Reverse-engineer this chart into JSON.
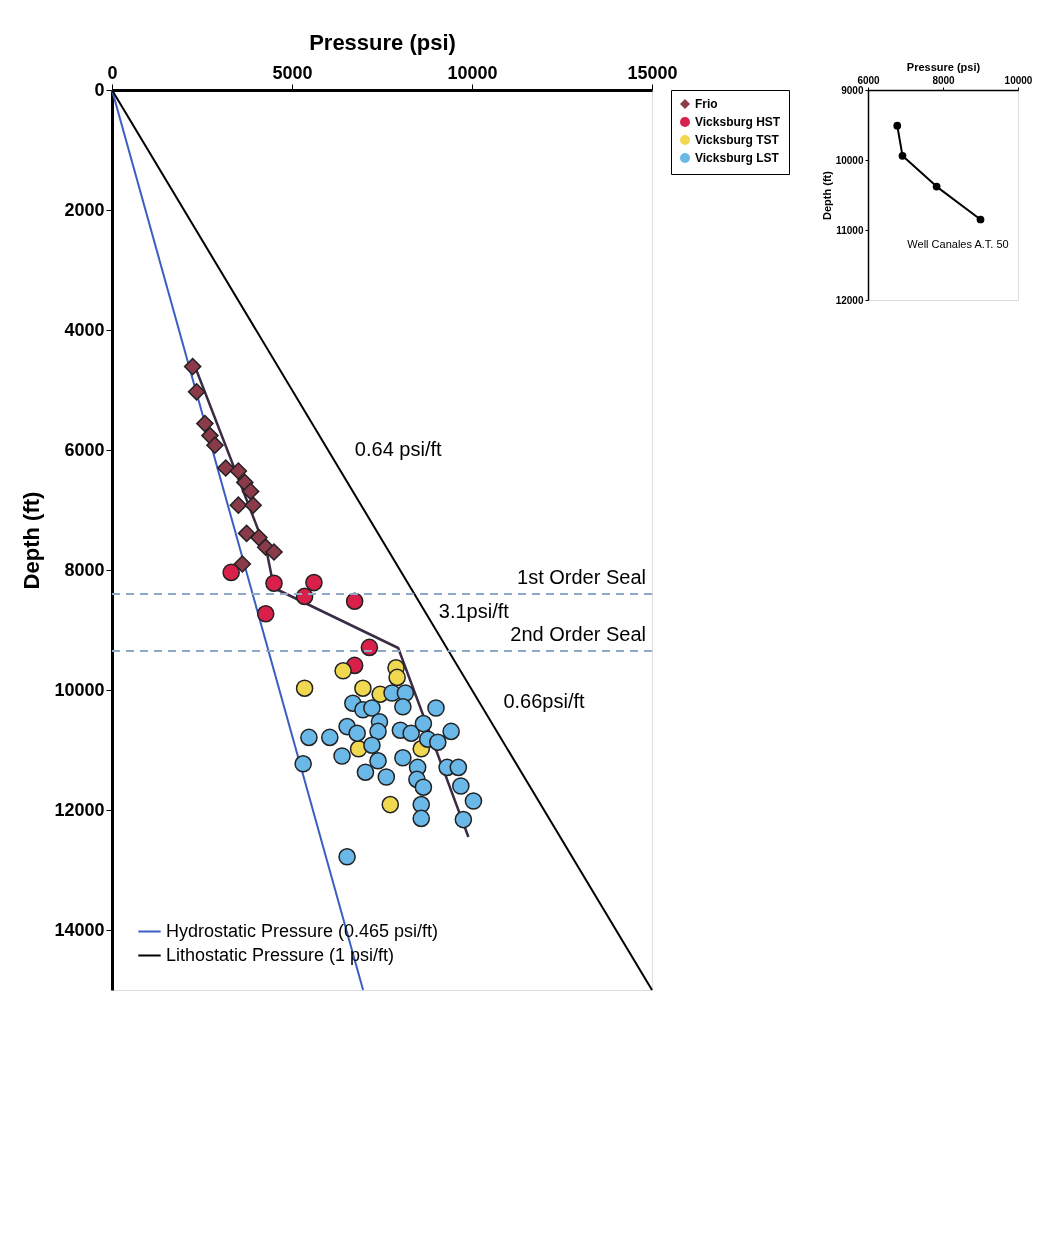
{
  "chart_data": [
    {
      "type": "scatter",
      "xlabel": "Pressure (psi)",
      "ylabel": "Depth (ft)",
      "xlim": [
        0,
        15000
      ],
      "xticks": [
        0,
        5000,
        10000,
        15000
      ],
      "ylim": [
        15000,
        0
      ],
      "yticks": [
        0,
        2000,
        4000,
        6000,
        8000,
        10000,
        12000,
        14000
      ],
      "grid": false,
      "legend": "right",
      "series": [
        {
          "name": "Hydrostatic Pressure (0.465 psi/ft)",
          "type": "line",
          "color": "#3b5fc0",
          "x": [
            0,
            6975
          ],
          "values": [
            0,
            15000
          ]
        },
        {
          "name": "Lithostatic Pressure (1 psi/ft)",
          "type": "line",
          "color": "#000000",
          "x": [
            0,
            15000
          ],
          "values": [
            0,
            15000
          ]
        },
        {
          "type": "line",
          "color": "#3b2b45",
          "x": [
            2300,
            4300,
            4500,
            7950,
            9900
          ],
          "values": [
            4600,
            7700,
            8300,
            9300,
            12450
          ]
        },
        {
          "name": "Frio",
          "type": "scatter",
          "marker": "diamond",
          "color": "#8b3a4a",
          "x": [
            2240,
            2350,
            2580,
            2720,
            2860,
            3160,
            3510,
            3690,
            3850,
            3510,
            3920,
            3740,
            4080,
            4270,
            4500,
            3620
          ],
          "values": [
            4610,
            5030,
            5560,
            5760,
            5920,
            6300,
            6350,
            6540,
            6690,
            6920,
            6920,
            7390,
            7460,
            7620,
            7700,
            7900
          ]
        },
        {
          "name": "Vicksburg HST",
          "type": "scatter",
          "marker": "circle",
          "color": "#d8204a",
          "x": [
            3310,
            4500,
            5610,
            5350,
            6740,
            4270,
            7150,
            6740
          ],
          "values": [
            8040,
            8220,
            8210,
            8440,
            8520,
            8730,
            9290,
            9590
          ]
        },
        {
          "name": "Vicksburg TST",
          "type": "scatter",
          "marker": "circle",
          "color": "#f0d850",
          "x": [
            5350,
            6420,
            6970,
            7450,
            7890,
            7920,
            6850,
            8590,
            7730
          ],
          "values": [
            9970,
            9680,
            9970,
            10070,
            9630,
            9790,
            10980,
            10980,
            11910
          ]
        },
        {
          "name": "Vicksburg LST",
          "type": "scatter",
          "marker": "circle",
          "color": "#6ab8e8",
          "x": [
            5310,
            5470,
            6050,
            6390,
            6530,
            6810,
            6690,
            6970,
            7220,
            7430,
            7390,
            7220,
            7390,
            7040,
            7620,
            7780,
            8150,
            8080,
            8010,
            8310,
            8080,
            8490,
            8470,
            8650,
            8590,
            8590,
            9000,
            8650,
            8770,
            9050,
            9420,
            9310,
            9620,
            9690,
            10040,
            9760,
            6530
          ],
          "values": [
            11230,
            10790,
            10790,
            11100,
            10610,
            10720,
            10220,
            10330,
            10300,
            10530,
            10690,
            10920,
            11180,
            11370,
            11450,
            10050,
            10050,
            10280,
            10670,
            10720,
            11130,
            11290,
            11490,
            11620,
            11910,
            12140,
            10300,
            10560,
            10820,
            10870,
            10690,
            11290,
            11290,
            11600,
            11850,
            12160,
            12780
          ]
        }
      ],
      "ref_lines": [
        {
          "axis": "y",
          "value": 8400,
          "label": "1st Order Seal",
          "color": "#8fa8c8",
          "line_style": "dashed"
        },
        {
          "axis": "y",
          "value": 9350,
          "label": "2nd Order Seal",
          "color": "#8fa8c8",
          "line_style": "dashed"
        }
      ],
      "annotations": [
        "0.64 psi/ft",
        "3.1psi/ft",
        "0.66psi/ft"
      ]
    },
    {
      "type": "line",
      "xlabel": "Pressure (psi)",
      "ylabel": "Depth (ft)",
      "marker": "circle",
      "xlim": [
        6000,
        10000
      ],
      "xticks": [
        6000,
        8000,
        10000
      ],
      "ylim": [
        12000,
        9000
      ],
      "yticks": [
        9000,
        10000,
        11000,
        12000
      ],
      "grid": false,
      "series": [
        {
          "color": "#000000",
          "x": [
            6780,
            6920,
            7830,
            9000
          ],
          "values": [
            9510,
            9940,
            10380,
            10850
          ]
        }
      ],
      "annotations": [
        "Well Canales A.T. 50"
      ]
    }
  ]
}
